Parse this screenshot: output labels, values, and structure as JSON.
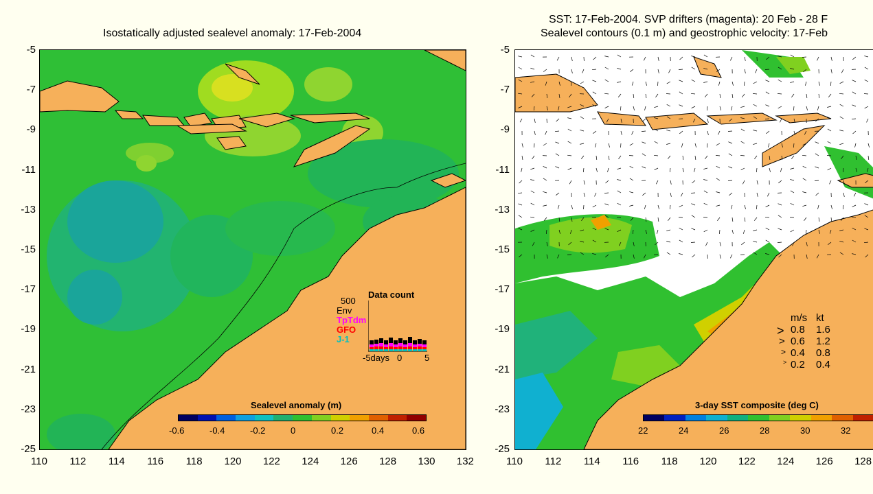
{
  "left": {
    "title": "Isostatically adjusted sealevel anomaly: 17-Feb-2004",
    "y_ticks": [
      "-5",
      "-7",
      "-9",
      "-11",
      "-13",
      "-15",
      "-17",
      "-19",
      "-21",
      "-23",
      "-25"
    ],
    "x_ticks": [
      "110",
      "112",
      "114",
      "116",
      "118",
      "120",
      "122",
      "124",
      "126",
      "128",
      "130",
      "132"
    ],
    "colorbar_title": "Sealevel anomaly (m)",
    "colorbar_ticks": [
      "-0.6",
      "-0.4",
      "-0.2",
      "0",
      "0.2",
      "0.4",
      "0.6"
    ],
    "colorbar_colors": [
      "#000060",
      "#0010b0",
      "#0060e0",
      "#10a0e0",
      "#10c0c0",
      "#20b070",
      "#30c030",
      "#80d020",
      "#d0d000",
      "#f0a000",
      "#e06000",
      "#c02000",
      "#900000"
    ],
    "datacount": {
      "title": "Data count",
      "scale": "500",
      "series": [
        {
          "name": "Env",
          "color": "#000000"
        },
        {
          "name": "TpTdm",
          "color": "#ff00ff"
        },
        {
          "name": "GFO",
          "color": "#ff0000"
        },
        {
          "name": "J-1",
          "color": "#00c0c0"
        }
      ],
      "xlabel_left": "-5days",
      "xlabel_mid": "0",
      "xlabel_right": "5"
    }
  },
  "right": {
    "title_line1": "SST: 17-Feb-2004. SVP drifters (magenta): 20 Feb - 28 F",
    "title_line2": "Sealevel contours (0.1 m) and geostrophic velocity: 17-Feb",
    "y_ticks": [
      "-5",
      "-7",
      "-9",
      "-11",
      "-13",
      "-15",
      "-17",
      "-19",
      "-21",
      "-23",
      "-25"
    ],
    "x_ticks": [
      "110",
      "112",
      "114",
      "116",
      "118",
      "120",
      "122",
      "124",
      "126",
      "128"
    ],
    "colorbar_title": "3-day SST composite (deg C)",
    "colorbar_ticks": [
      "22",
      "24",
      "26",
      "28",
      "30",
      "32"
    ],
    "colorbar_colors": [
      "#000060",
      "#0020c0",
      "#0080e0",
      "#10b0d0",
      "#10b080",
      "#30c030",
      "#80d020",
      "#d0d000",
      "#f0a000",
      "#e06000",
      "#c02000"
    ],
    "velocity_legend": {
      "header_ms": "m/s",
      "header_kt": "kt",
      "rows": [
        {
          "ms": "0.8",
          "kt": "1.6"
        },
        {
          "ms": "0.6",
          "kt": "1.2"
        },
        {
          "ms": "0.4",
          "kt": "0.8"
        },
        {
          "ms": "0.2",
          "kt": "0.4"
        }
      ]
    }
  },
  "colors": {
    "land": "#f6b05a",
    "ocean_green": "#33c43a",
    "background": "#fffff0"
  }
}
